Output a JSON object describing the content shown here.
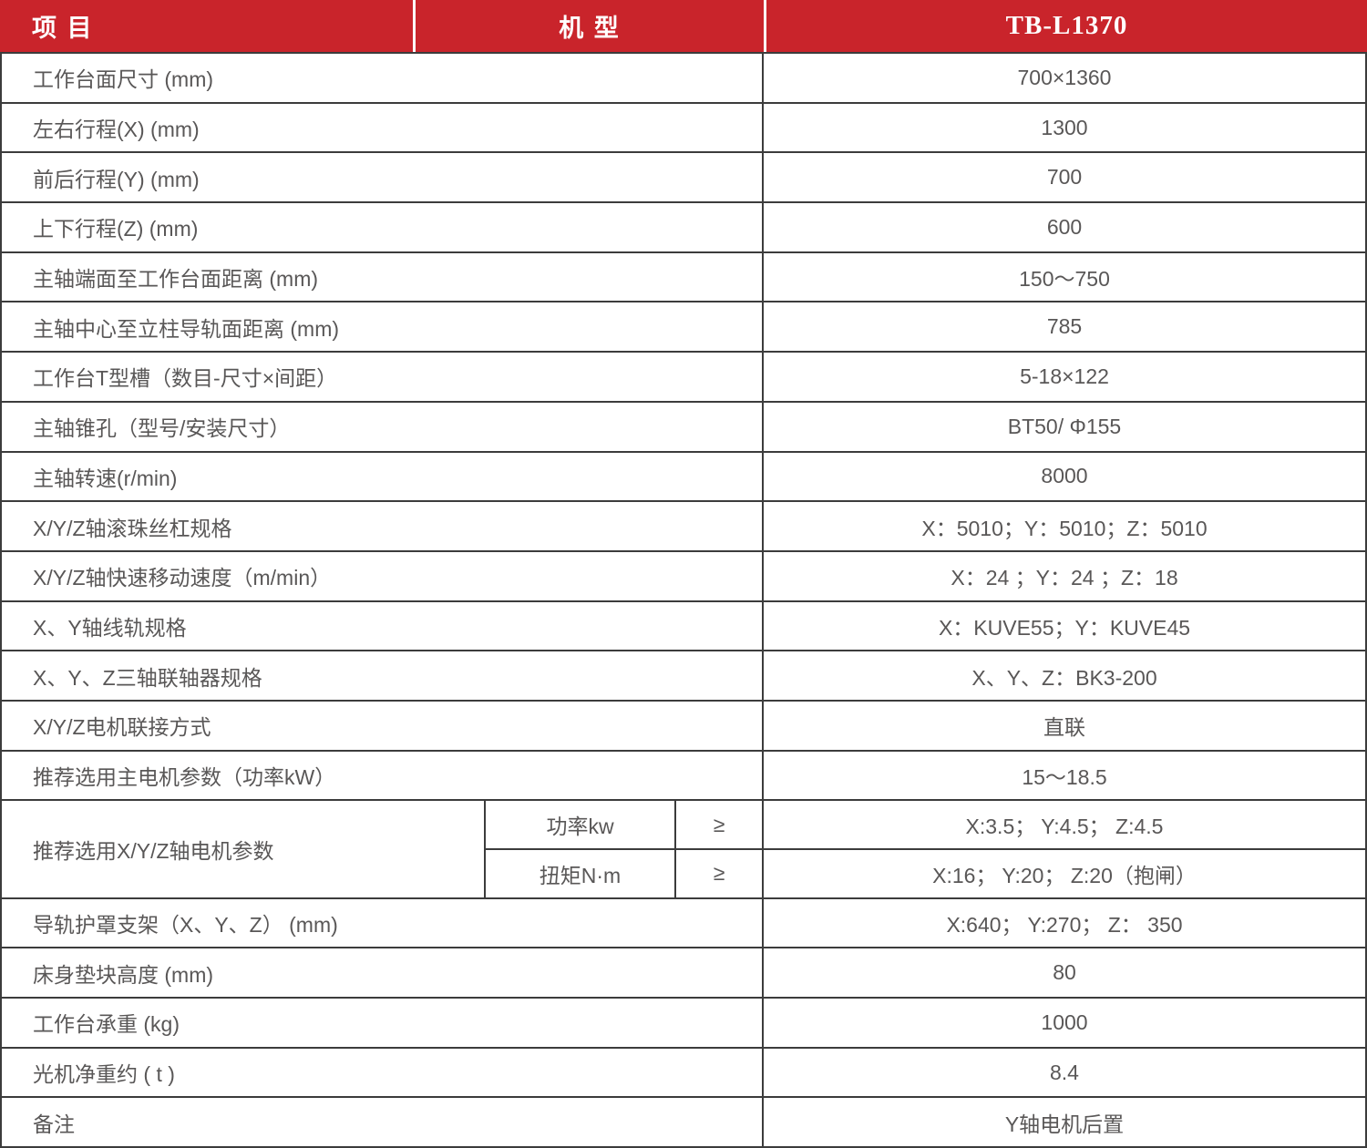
{
  "header": {
    "item_label": "项  目",
    "model_label": "机  型",
    "machine_model": "TB-L1370"
  },
  "rows": [
    {
      "label": "工作台面尺寸 (mm)",
      "value": "700×1360"
    },
    {
      "label": "左右行程(X)  (mm)",
      "value": "1300"
    },
    {
      "label": "前后行程(Y)  (mm)",
      "value": "700"
    },
    {
      "label": "上下行程(Z)  (mm)",
      "value": "600"
    },
    {
      "label": "主轴端面至工作台面距离 (mm)",
      "value": "150～750"
    },
    {
      "label": "主轴中心至立柱导轨面距离 (mm)",
      "value": "785"
    },
    {
      "label": "工作台T型槽（数目-尺寸×间距）",
      "value": "5-18×122"
    },
    {
      "label": "主轴锥孔（型号/安装尺寸）",
      "value": "BT50/ Φ155"
    },
    {
      "label": "主轴转速(r/min)",
      "value": "8000"
    },
    {
      "label": "X/Y/Z轴滚珠丝杠规格",
      "value": "X：5010；Y：5010；Z：5010"
    },
    {
      "label": "X/Y/Z轴快速移动速度（m/min）",
      "value": "X：24 ；Y：24 ；Z：18"
    },
    {
      "label": "X、Y轴线轨规格",
      "value": "X：KUVE55；Y：KUVE45"
    },
    {
      "label": "X、Y、Z三轴联轴器规格",
      "value": "X、Y、Z：BK3-200"
    },
    {
      "label": "X/Y/Z电机联接方式",
      "value": "直联"
    },
    {
      "label": "推荐选用主电机参数（功率kW）",
      "value": "15～18.5"
    }
  ],
  "motor_params": {
    "label": "推荐选用X/Y/Z轴电机参数",
    "sub_rows": [
      {
        "param": "功率kw",
        "operator": "≥",
        "value": "X:3.5； Y:4.5； Z:4.5"
      },
      {
        "param": "扭矩N·m",
        "operator": "≥",
        "value": "X:16； Y:20； Z:20（抱闸）"
      }
    ]
  },
  "rows_after": [
    {
      "label": "导轨护罩支架（X、Y、Z） (mm)",
      "value": "X:640； Y:270； Z： 350"
    },
    {
      "label": "床身垫块高度 (mm)",
      "value": "80"
    },
    {
      "label": "工作台承重 (kg)",
      "value": "1000"
    },
    {
      "label": "光机净重约 ( t )",
      "value": "8.4"
    },
    {
      "label": "备注",
      "value": "Y轴电机后置"
    }
  ],
  "colors": {
    "header_red": "#C9242B",
    "header_text": "#FFFFFF",
    "border": "#3C3C3C",
    "body_text": "#595757"
  }
}
